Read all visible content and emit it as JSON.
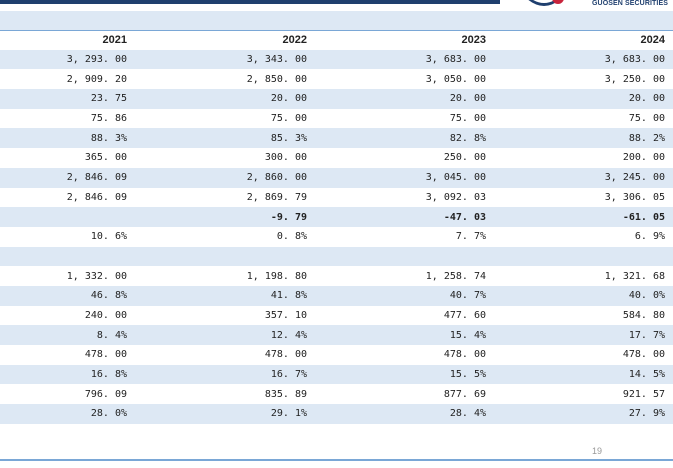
{
  "logo": {
    "text": "GUOSEN SECURITIES"
  },
  "columns": [
    "2021",
    "2022",
    "2023",
    "2024"
  ],
  "rows": [
    [
      "3, 293. 00",
      "3, 343. 00",
      "3, 683. 00",
      "3, 683. 00"
    ],
    [
      "2, 909. 20",
      "2, 850. 00",
      "3, 050. 00",
      "3, 250. 00"
    ],
    [
      "23. 75",
      "20. 00",
      "20. 00",
      "20. 00"
    ],
    [
      "75. 86",
      "75. 00",
      "75. 00",
      "75. 00"
    ],
    [
      "88. 3%",
      "85. 3%",
      "82. 8%",
      "88. 2%"
    ],
    [
      "365. 00",
      "300. 00",
      "250. 00",
      "200. 00"
    ],
    [
      "2, 846. 09",
      "2, 860. 00",
      "3, 045. 00",
      "3, 245. 00"
    ],
    [
      "2, 846. 09",
      "2, 869. 79",
      "3, 092. 03",
      "3, 306. 05"
    ],
    [
      "",
      "-9. 79",
      "-47. 03",
      "-61. 05"
    ],
    [
      "10. 6%",
      "0. 8%",
      "7. 7%",
      "6. 9%"
    ],
    [
      "",
      "",
      "",
      ""
    ],
    [
      "1, 332. 00",
      "1, 198. 80",
      "1, 258. 74",
      "1, 321. 68"
    ],
    [
      "46. 8%",
      "41. 8%",
      "40. 7%",
      "40. 0%"
    ],
    [
      "240. 00",
      "357. 10",
      "477. 60",
      "584. 80"
    ],
    [
      "8. 4%",
      "12. 4%",
      "15. 4%",
      "17. 7%"
    ],
    [
      "478. 00",
      "478. 00",
      "478. 00",
      "478. 00"
    ],
    [
      "16. 8%",
      "16. 7%",
      "15. 5%",
      "14. 5%"
    ],
    [
      "796. 09",
      "835. 89",
      "877. 69",
      "921. 57"
    ],
    [
      "28. 0%",
      "29. 1%",
      "28. 4%",
      "27. 9%"
    ]
  ],
  "bold_row_index": 8,
  "page_number": "19",
  "colors": {
    "band": "#dde8f4",
    "accent": "#1f3f6e",
    "rule": "#7aa7d6"
  }
}
